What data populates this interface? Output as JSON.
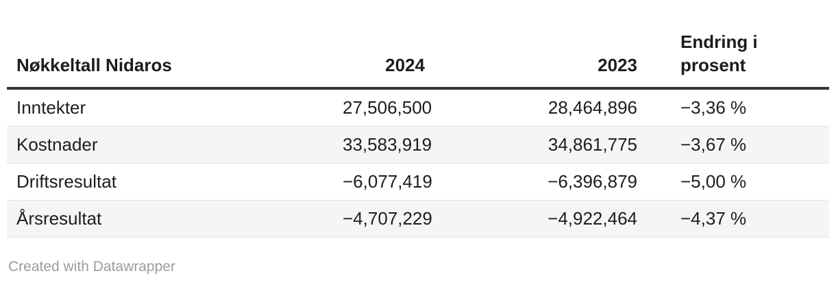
{
  "table": {
    "columns": [
      "Nøkkeltall Nidaros",
      "2024",
      "2023",
      "Endring i prosent"
    ],
    "rows": [
      {
        "label": "Inntekter",
        "y2024": "27,506,500",
        "y2023": "28,464,896",
        "change": "−3,36 %"
      },
      {
        "label": "Kostnader",
        "y2024": "33,583,919",
        "y2023": "34,861,775",
        "change": "−3,67 %"
      },
      {
        "label": "Driftsresultat",
        "y2024": "−6,077,419",
        "y2023": "−6,396,879",
        "change": "−5,00 %"
      },
      {
        "label": "Årsresultat",
        "y2024": "−4,707,229",
        "y2023": "−4,922,464",
        "change": "−4,37 %"
      }
    ]
  },
  "footer": {
    "attribution": "Created with Datawrapper"
  },
  "colors": {
    "text": "#1d1d1d",
    "header_rule": "#333333",
    "stripe": "#f5f5f5",
    "row_border": "#e4e4e4",
    "footer_text": "#9c9c9c"
  },
  "chart_data": {
    "type": "table",
    "title": "Nøkkeltall Nidaros",
    "columns": [
      "Nøkkeltall Nidaros",
      "2024",
      "2023",
      "Endring i prosent"
    ],
    "rows": [
      {
        "label": "Inntekter",
        "y2024": 27506500,
        "y2023": 28464896,
        "change_percent": -3.36
      },
      {
        "label": "Kostnader",
        "y2024": 33583919,
        "y2023": 34861775,
        "change_percent": -3.67
      },
      {
        "label": "Driftsresultat",
        "y2024": -6077419,
        "y2023": -6396879,
        "change_percent": -5.0
      },
      {
        "label": "Årsresultat",
        "y2024": -4707229,
        "y2023": -4922464,
        "change_percent": -4.37
      }
    ],
    "layout": {
      "zebra_stripes": true,
      "header_rule": true,
      "number_alignment": "right",
      "percent_alignment": "left"
    }
  }
}
